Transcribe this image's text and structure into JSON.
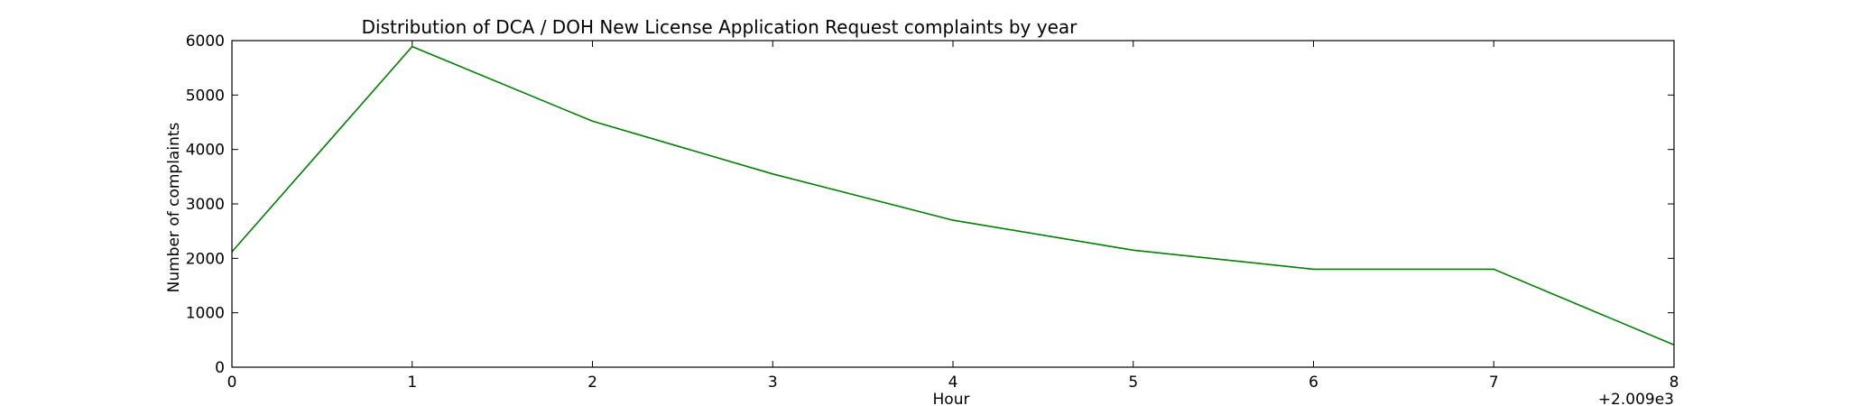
{
  "chart_data": {
    "type": "line",
    "title": "Distribution of  DCA / DOH New License Application Request complaints by year",
    "xlabel": "Hour",
    "ylabel": "Number of complaints",
    "x_offset_label": "+2.009e3",
    "x_tick_labels": [
      "0",
      "1",
      "2",
      "3",
      "4",
      "5",
      "6",
      "7",
      "8"
    ],
    "y_tick_labels": [
      "0",
      "1000",
      "2000",
      "3000",
      "4000",
      "5000",
      "6000"
    ],
    "xlim": [
      0,
      8
    ],
    "ylim": [
      0,
      6000
    ],
    "grid": false,
    "series": [
      {
        "color": "#008000",
        "x": [
          0,
          1,
          2,
          3,
          4,
          5,
          6,
          7,
          8
        ],
        "values": [
          2120,
          5890,
          4520,
          3550,
          2700,
          2150,
          1800,
          1800,
          410
        ]
      }
    ]
  }
}
